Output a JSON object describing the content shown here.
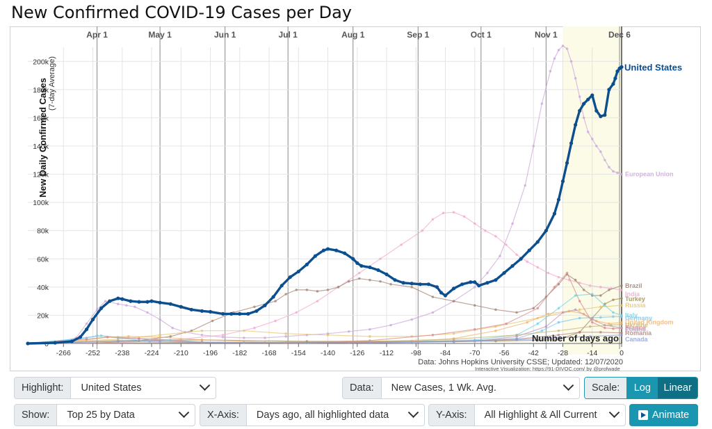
{
  "page_title": "New Confirmed COVID-19 Cases per Day",
  "chart_data": {
    "type": "line",
    "ylabel": "New Daily Confirmed Cases",
    "ylabel_sub": "(7-day Average)",
    "xlabel": "Number of days ago",
    "source": "Data: Johns Hopkins University CSSE; Updated: 12/07/2020",
    "credit": "Interactive Visualization: https://91-DIVOC.com/ by @profwade_",
    "xlim": [
      -283,
      0
    ],
    "ylim": [
      0,
      210000
    ],
    "y_ticks": [
      0,
      20000,
      40000,
      60000,
      80000,
      100000,
      120000,
      140000,
      160000,
      180000,
      200000
    ],
    "y_tick_labels": [
      "0",
      "20k",
      "40k",
      "60k",
      "80k",
      "100k",
      "120k",
      "140k",
      "160k",
      "180k",
      "200k"
    ],
    "x_ticks": [
      -266,
      -252,
      -238,
      -224,
      -210,
      -196,
      -182,
      -168,
      -154,
      -140,
      -126,
      -112,
      -98,
      -84,
      -70,
      -56,
      -42,
      -28,
      -14,
      0
    ],
    "x_tick_labels": [
      "-266",
      "-252",
      "-238",
      "-224",
      "-210",
      "-196",
      "-182",
      "-168",
      "-154",
      "-140",
      "-126",
      "-112",
      "-98",
      "-84",
      "-70",
      "-56",
      "-42",
      "-28",
      "-14",
      "0"
    ],
    "month_markers": [
      {
        "label": "Apr 1",
        "x": -250
      },
      {
        "label": "May 1",
        "x": -220
      },
      {
        "label": "Jun 1",
        "x": -189
      },
      {
        "label": "Jul 1",
        "x": -159
      },
      {
        "label": "Aug 1",
        "x": -128
      },
      {
        "label": "Sep 1",
        "x": -97
      },
      {
        "label": "Oct 1",
        "x": -67
      },
      {
        "label": "Nov 1",
        "x": -36
      },
      {
        "label": "Dec 6",
        "x": -1
      }
    ],
    "series": [
      {
        "name": "United States",
        "color": "#0b4f8f",
        "highlight": true,
        "x": [
          -283,
          -270,
          -262,
          -258,
          -255,
          -252,
          -248,
          -244,
          -240,
          -238,
          -234,
          -230,
          -226,
          -224,
          -220,
          -215,
          -210,
          -205,
          -200,
          -196,
          -190,
          -186,
          -182,
          -178,
          -174,
          -170,
          -166,
          -162,
          -158,
          -154,
          -150,
          -146,
          -142,
          -140,
          -136,
          -132,
          -128,
          -126,
          -124,
          -120,
          -116,
          -112,
          -108,
          -104,
          -100,
          -96,
          -92,
          -88,
          -86,
          -84,
          -80,
          -76,
          -72,
          -70,
          -68,
          -64,
          -60,
          -56,
          -52,
          -48,
          -44,
          -40,
          -36,
          -32,
          -30,
          -28,
          -26,
          -24,
          -22,
          -20,
          -18,
          -16,
          -14,
          -12,
          -10,
          -8,
          -6,
          -4,
          -3,
          -2,
          -1,
          0
        ],
        "y": [
          0,
          500,
          1500,
          4500,
          10000,
          17000,
          25000,
          30000,
          32000,
          31500,
          30000,
          29500,
          29500,
          30000,
          29000,
          28000,
          26000,
          24000,
          23000,
          22500,
          21000,
          21000,
          21000,
          21000,
          23000,
          27000,
          33000,
          41000,
          47000,
          51000,
          56000,
          62000,
          66000,
          67000,
          66000,
          64000,
          60000,
          57000,
          55000,
          54000,
          52000,
          49000,
          45000,
          43000,
          42500,
          42000,
          42000,
          40000,
          36000,
          34000,
          39000,
          42000,
          43500,
          43500,
          41000,
          43000,
          45000,
          50000,
          55000,
          60000,
          66000,
          72000,
          80000,
          92000,
          102000,
          115000,
          128000,
          142000,
          155000,
          165000,
          170000,
          173000,
          176000,
          165000,
          161000,
          162000,
          180000,
          184000,
          188000,
          193000,
          195000,
          196000
        ]
      },
      {
        "name": "European Union",
        "color": "#c9a5d8",
        "x": [
          -283,
          -270,
          -260,
          -255,
          -250,
          -246,
          -240,
          -236,
          -232,
          -226,
          -220,
          -214,
          -208,
          -200,
          -190,
          -180,
          -170,
          -160,
          -150,
          -140,
          -130,
          -120,
          -110,
          -100,
          -90,
          -80,
          -70,
          -64,
          -58,
          -52,
          -46,
          -42,
          -38,
          -34,
          -32,
          -30,
          -28,
          -26,
          -24,
          -22,
          -20,
          -18,
          -16,
          -14,
          -12,
          -10,
          -8,
          -6,
          -4,
          -2,
          0
        ],
        "y": [
          0,
          400,
          4000,
          14000,
          24000,
          30000,
          28000,
          27000,
          26000,
          22000,
          17000,
          11000,
          8000,
          6000,
          4500,
          4000,
          4000,
          5000,
          6000,
          7000,
          8500,
          10000,
          13000,
          17000,
          22000,
          30000,
          40000,
          50000,
          62000,
          85000,
          112000,
          140000,
          170000,
          193000,
          202000,
          208000,
          211000,
          209000,
          200000,
          188000,
          175000,
          160000,
          150000,
          145000,
          140000,
          136000,
          130000,
          125000,
          122000,
          121000,
          120000
        ]
      },
      {
        "name": "India",
        "color": "#f2a7cf",
        "x": [
          -283,
          -240,
          -210,
          -190,
          -175,
          -165,
          -155,
          -145,
          -135,
          -125,
          -115,
          -105,
          -95,
          -90,
          -85,
          -80,
          -75,
          -70,
          -65,
          -60,
          -55,
          -50,
          -45,
          -40,
          -35,
          -30,
          -25,
          -20,
          -15,
          -10,
          -5,
          0
        ],
        "y": [
          0,
          500,
          3000,
          6000,
          11000,
          16000,
          22000,
          30000,
          40000,
          50000,
          60000,
          70000,
          80000,
          88000,
          92500,
          93000,
          90000,
          85000,
          80000,
          76000,
          70000,
          63000,
          58000,
          54000,
          50000,
          47000,
          45000,
          43000,
          41000,
          40000,
          39000,
          38000
        ]
      },
      {
        "name": "Brazil",
        "color": "#a08070",
        "x": [
          -283,
          -250,
          -230,
          -215,
          -205,
          -195,
          -185,
          -175,
          -165,
          -160,
          -155,
          -150,
          -145,
          -140,
          -135,
          -130,
          -125,
          -120,
          -115,
          -110,
          -100,
          -90,
          -80,
          -70,
          -60,
          -50,
          -42,
          -36,
          -30,
          -26,
          -22,
          -18,
          -14,
          -10,
          -6,
          0
        ],
        "y": [
          0,
          300,
          2000,
          5000,
          9000,
          16000,
          22000,
          26000,
          30000,
          35000,
          38000,
          38000,
          37000,
          38000,
          40000,
          44000,
          46000,
          45000,
          44000,
          42000,
          40000,
          33000,
          30000,
          27000,
          24000,
          22000,
          25000,
          33000,
          42000,
          49000,
          45000,
          38000,
          34000,
          34000,
          38000,
          41000
        ]
      },
      {
        "name": "Turkey",
        "color": "#9a8a55",
        "x": [
          -283,
          -240,
          -200,
          -150,
          -100,
          -60,
          -40,
          -30,
          -20,
          -14,
          -8,
          -4,
          0
        ],
        "y": [
          0,
          2000,
          2500,
          1500,
          1500,
          1700,
          2200,
          2800,
          8000,
          18000,
          28000,
          31000,
          32000
        ]
      },
      {
        "name": "Russia",
        "color": "#e6c36a",
        "x": [
          -283,
          -240,
          -220,
          -200,
          -180,
          -160,
          -140,
          -120,
          -100,
          -80,
          -60,
          -40,
          -20,
          -10,
          0
        ],
        "y": [
          0,
          3000,
          6000,
          9000,
          9000,
          7000,
          6000,
          5000,
          5000,
          7000,
          12000,
          18000,
          24000,
          26000,
          27000
        ]
      },
      {
        "name": "Italy",
        "color": "#74d0e0",
        "x": [
          -283,
          -260,
          -250,
          -240,
          -230,
          -215,
          -200,
          -150,
          -100,
          -70,
          -50,
          -40,
          -30,
          -22,
          -14,
          -8,
          -4,
          0
        ],
        "y": [
          0,
          3000,
          5500,
          4500,
          3500,
          2500,
          1000,
          300,
          1500,
          2500,
          6000,
          14000,
          25000,
          34000,
          35000,
          27000,
          22000,
          20000
        ]
      },
      {
        "name": "Germany",
        "color": "#7ec4e8",
        "x": [
          -283,
          -255,
          -248,
          -240,
          -225,
          -200,
          -150,
          -100,
          -70,
          -50,
          -38,
          -30,
          -20,
          -10,
          -4,
          0
        ],
        "y": [
          0,
          4000,
          5500,
          4000,
          1500,
          800,
          500,
          1200,
          2000,
          3500,
          9000,
          15000,
          18000,
          18500,
          19000,
          19000
        ]
      },
      {
        "name": "United Kingdom",
        "color": "#f4b26a",
        "x": [
          -283,
          -255,
          -245,
          -235,
          -220,
          -200,
          -170,
          -130,
          -100,
          -80,
          -60,
          -45,
          -35,
          -25,
          -18,
          -12,
          -6,
          0
        ],
        "y": [
          0,
          2500,
          4500,
          5000,
          4500,
          2500,
          1000,
          800,
          1500,
          3500,
          9000,
          15000,
          21000,
          23000,
          21000,
          16000,
          14000,
          15000
        ]
      },
      {
        "name": "France",
        "color": "#d88a8a",
        "x": [
          -283,
          -255,
          -245,
          -230,
          -200,
          -160,
          -120,
          -90,
          -70,
          -55,
          -40,
          -32,
          -26,
          -20,
          -14,
          -8,
          -4,
          0
        ],
        "y": [
          0,
          3000,
          4500,
          3500,
          800,
          500,
          2000,
          6000,
          10000,
          14000,
          25000,
          40000,
          50000,
          30000,
          15000,
          11000,
          10500,
          11000
        ]
      },
      {
        "name": "Ukraine",
        "color": "#c8b06a",
        "x": [
          -283,
          -180,
          -120,
          -80,
          -50,
          -30,
          -15,
          -5,
          0
        ],
        "y": [
          0,
          800,
          1500,
          3000,
          6000,
          9000,
          12000,
          13000,
          13500
        ]
      },
      {
        "name": "Poland",
        "color": "#b898b8",
        "x": [
          -283,
          -200,
          -120,
          -70,
          -50,
          -36,
          -28,
          -22,
          -14,
          -8,
          0
        ],
        "y": [
          0,
          400,
          600,
          1500,
          5000,
          12000,
          22000,
          24000,
          17000,
          13000,
          11000
        ]
      },
      {
        "name": "Romania",
        "color": "#b08080",
        "x": [
          -283,
          -150,
          -80,
          -50,
          -30,
          -20,
          -10,
          0
        ],
        "y": [
          0,
          700,
          1500,
          3000,
          6000,
          8000,
          8000,
          7500
        ]
      },
      {
        "name": "Canada",
        "color": "#8aa0d8",
        "x": [
          -283,
          -240,
          -220,
          -180,
          -120,
          -80,
          -50,
          -30,
          -15,
          0
        ],
        "y": [
          0,
          1500,
          1500,
          500,
          400,
          1200,
          2500,
          4000,
          5000,
          6000
        ]
      }
    ],
    "end_labels": [
      {
        "name": "United States",
        "y": 196000
      },
      {
        "name": "European Union",
        "y": 120000
      },
      {
        "name": "Brazil",
        "y": 41000
      },
      {
        "name": "India",
        "y": 35000
      },
      {
        "name": "Turkey",
        "y": 31500
      },
      {
        "name": "Russia",
        "y": 27000
      },
      {
        "name": "Italy",
        "y": 20000
      },
      {
        "name": "Germany",
        "y": 18000
      },
      {
        "name": "United Kingdom",
        "y": 15000
      },
      {
        "name": "Ukraine",
        "y": 13000
      },
      {
        "name": "France",
        "y": 11000
      },
      {
        "name": "Poland",
        "y": 10000
      },
      {
        "name": "Romania",
        "y": 7500
      },
      {
        "name": "Canada",
        "y": 3000
      }
    ]
  },
  "controls": {
    "highlight_label": "Highlight:",
    "highlight_value": "United States",
    "data_label": "Data:",
    "data_value": "New Cases, 1 Wk. Avg.",
    "scale_label": "Scale:",
    "scale_log": "Log",
    "scale_linear": "Linear",
    "show_label": "Show:",
    "show_value": "Top 25 by Data",
    "xaxis_label": "X-Axis:",
    "xaxis_value": "Days ago, all highlighted data",
    "yaxis_label": "Y-Axis:",
    "yaxis_value": "All Highlight & All Current",
    "animate_label": "Animate",
    "accent_color": "#1a96b0",
    "accent_dark": "#0f6f85"
  }
}
